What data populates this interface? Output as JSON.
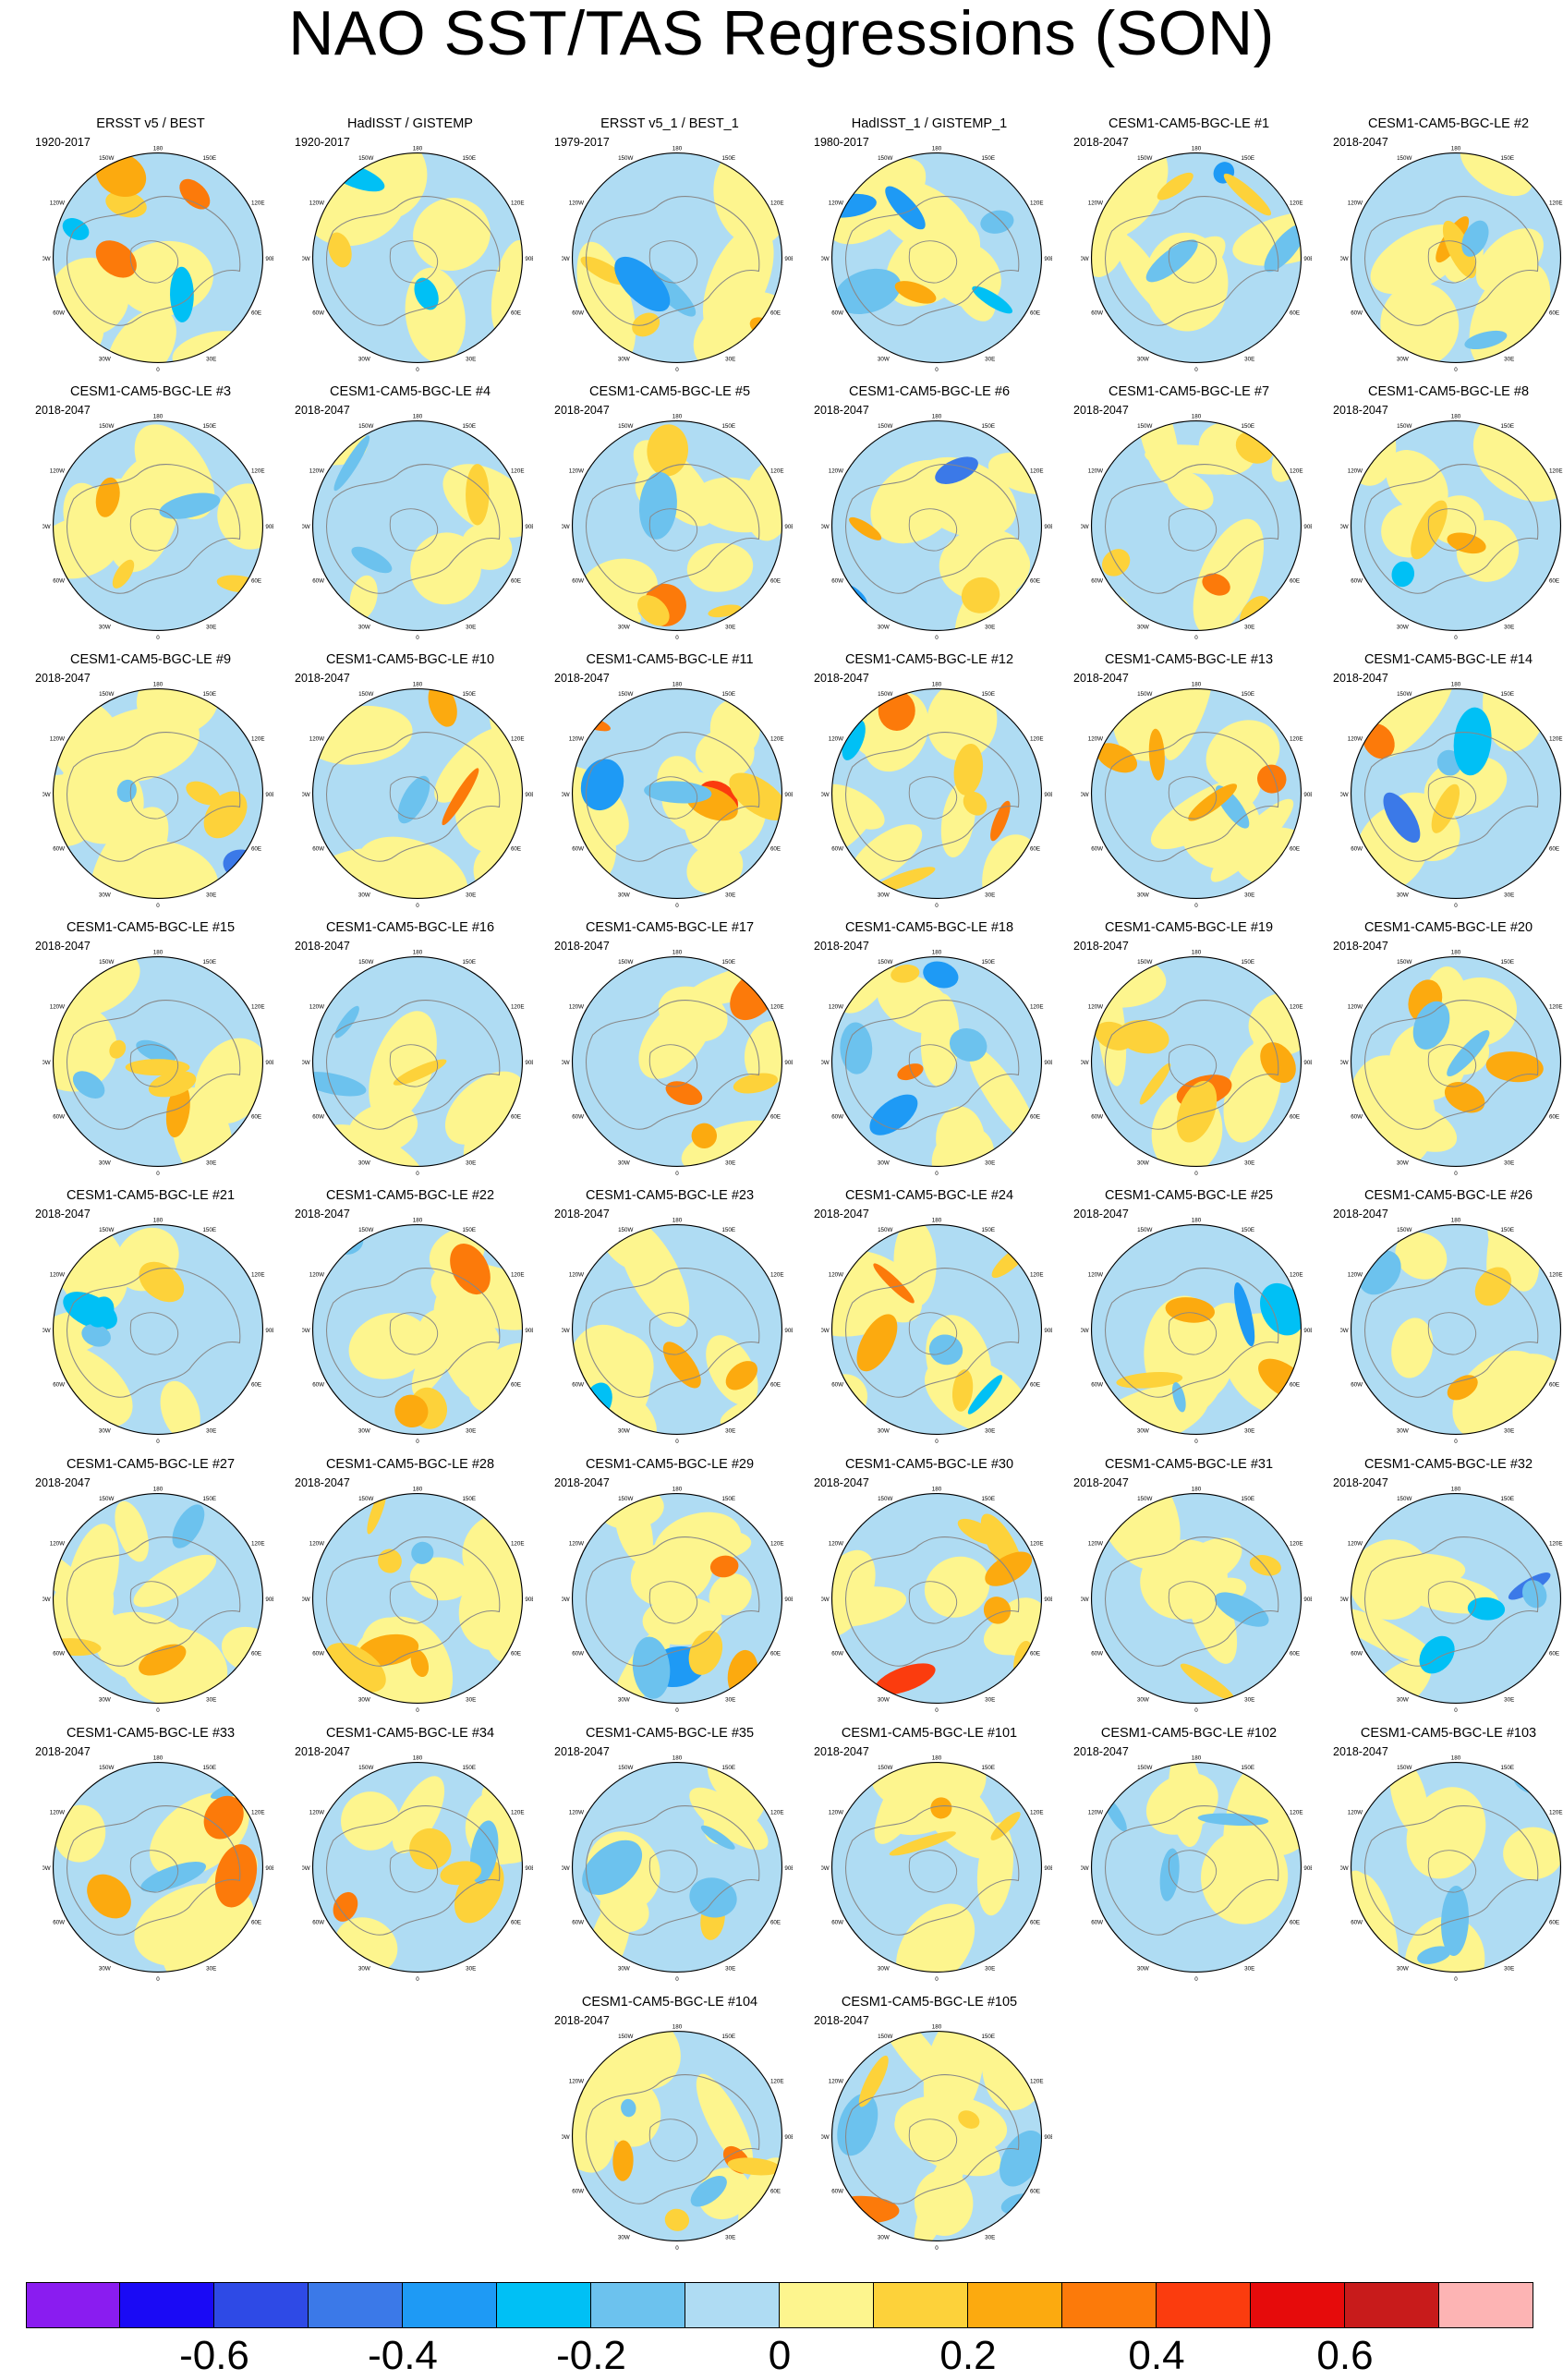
{
  "title": "NAO SST/TAS Regressions (SON)",
  "map_labels": {
    "lon_top": "180",
    "lon_150w": "150W",
    "lon_150e": "150E",
    "lon_120w": "120W",
    "lon_120e": "120E",
    "lon_90w": "90W",
    "lon_90e": "90E",
    "lon_60w": "60W",
    "lon_60e": "60E",
    "lon_30w": "30W",
    "lon_30e": "30E",
    "lon_bottom": "0"
  },
  "panels": [
    {
      "title": "ERSST v5 / BEST",
      "period": "1920-2017"
    },
    {
      "title": "HadISST / GISTEMP",
      "period": "1920-2017"
    },
    {
      "title": "ERSST v5_1 / BEST_1",
      "period": "1979-2017"
    },
    {
      "title": "HadISST_1 / GISTEMP_1",
      "period": "1980-2017"
    },
    {
      "title": "CESM1-CAM5-BGC-LE #1",
      "period": "2018-2047"
    },
    {
      "title": "CESM1-CAM5-BGC-LE #2",
      "period": "2018-2047"
    },
    {
      "title": "CESM1-CAM5-BGC-LE #3",
      "period": "2018-2047"
    },
    {
      "title": "CESM1-CAM5-BGC-LE #4",
      "period": "2018-2047"
    },
    {
      "title": "CESM1-CAM5-BGC-LE #5",
      "period": "2018-2047"
    },
    {
      "title": "CESM1-CAM5-BGC-LE #6",
      "period": "2018-2047"
    },
    {
      "title": "CESM1-CAM5-BGC-LE #7",
      "period": "2018-2047"
    },
    {
      "title": "CESM1-CAM5-BGC-LE #8",
      "period": "2018-2047"
    },
    {
      "title": "CESM1-CAM5-BGC-LE #9",
      "period": "2018-2047"
    },
    {
      "title": "CESM1-CAM5-BGC-LE #10",
      "period": "2018-2047"
    },
    {
      "title": "CESM1-CAM5-BGC-LE #11",
      "period": "2018-2047"
    },
    {
      "title": "CESM1-CAM5-BGC-LE #12",
      "period": "2018-2047"
    },
    {
      "title": "CESM1-CAM5-BGC-LE #13",
      "period": "2018-2047"
    },
    {
      "title": "CESM1-CAM5-BGC-LE #14",
      "period": "2018-2047"
    },
    {
      "title": "CESM1-CAM5-BGC-LE #15",
      "period": "2018-2047"
    },
    {
      "title": "CESM1-CAM5-BGC-LE #16",
      "period": "2018-2047"
    },
    {
      "title": "CESM1-CAM5-BGC-LE #17",
      "period": "2018-2047"
    },
    {
      "title": "CESM1-CAM5-BGC-LE #18",
      "period": "2018-2047"
    },
    {
      "title": "CESM1-CAM5-BGC-LE #19",
      "period": "2018-2047"
    },
    {
      "title": "CESM1-CAM5-BGC-LE #20",
      "period": "2018-2047"
    },
    {
      "title": "CESM1-CAM5-BGC-LE #21",
      "period": "2018-2047"
    },
    {
      "title": "CESM1-CAM5-BGC-LE #22",
      "period": "2018-2047"
    },
    {
      "title": "CESM1-CAM5-BGC-LE #23",
      "period": "2018-2047"
    },
    {
      "title": "CESM1-CAM5-BGC-LE #24",
      "period": "2018-2047"
    },
    {
      "title": "CESM1-CAM5-BGC-LE #25",
      "period": "2018-2047"
    },
    {
      "title": "CESM1-CAM5-BGC-LE #26",
      "period": "2018-2047"
    },
    {
      "title": "CESM1-CAM5-BGC-LE #27",
      "period": "2018-2047"
    },
    {
      "title": "CESM1-CAM5-BGC-LE #28",
      "period": "2018-2047"
    },
    {
      "title": "CESM1-CAM5-BGC-LE #29",
      "period": "2018-2047"
    },
    {
      "title": "CESM1-CAM5-BGC-LE #30",
      "period": "2018-2047"
    },
    {
      "title": "CESM1-CAM5-BGC-LE #31",
      "period": "2018-2047"
    },
    {
      "title": "CESM1-CAM5-BGC-LE #32",
      "period": "2018-2047"
    },
    {
      "title": "CESM1-CAM5-BGC-LE #33",
      "period": "2018-2047"
    },
    {
      "title": "CESM1-CAM5-BGC-LE #34",
      "period": "2018-2047"
    },
    {
      "title": "CESM1-CAM5-BGC-LE #35",
      "period": "2018-2047"
    },
    {
      "title": "CESM1-CAM5-BGC-LE #101",
      "period": "2018-2047"
    },
    {
      "title": "CESM1-CAM5-BGC-LE #102",
      "period": "2018-2047"
    },
    {
      "title": "CESM1-CAM5-BGC-LE #103",
      "period": "2018-2047"
    },
    {
      "title": "CESM1-CAM5-BGC-LE #104",
      "period": "2018-2047"
    },
    {
      "title": "CESM1-CAM5-BGC-LE #105",
      "period": "2018-2047"
    }
  ],
  "colorbar": {
    "colors": [
      "#8a1cf0",
      "#1a0af5",
      "#2e4ae6",
      "#3b79e8",
      "#1e9af5",
      "#00c0f5",
      "#6cc2ee",
      "#afdcf3",
      "#fdf58e",
      "#fdd23a",
      "#fcaa0f",
      "#fc7a0a",
      "#fb3c0e",
      "#e60b0b",
      "#c81b1b",
      "#fdb4b4"
    ],
    "tick_labels": [
      "-0.6",
      "-0.4",
      "-0.2",
      "0",
      "0.2",
      "0.4",
      "0.6"
    ]
  },
  "palette": {
    "ocean_light_blue": "#afdcf3",
    "light_yellow": "#fdf58e",
    "coastline": "#888888"
  }
}
